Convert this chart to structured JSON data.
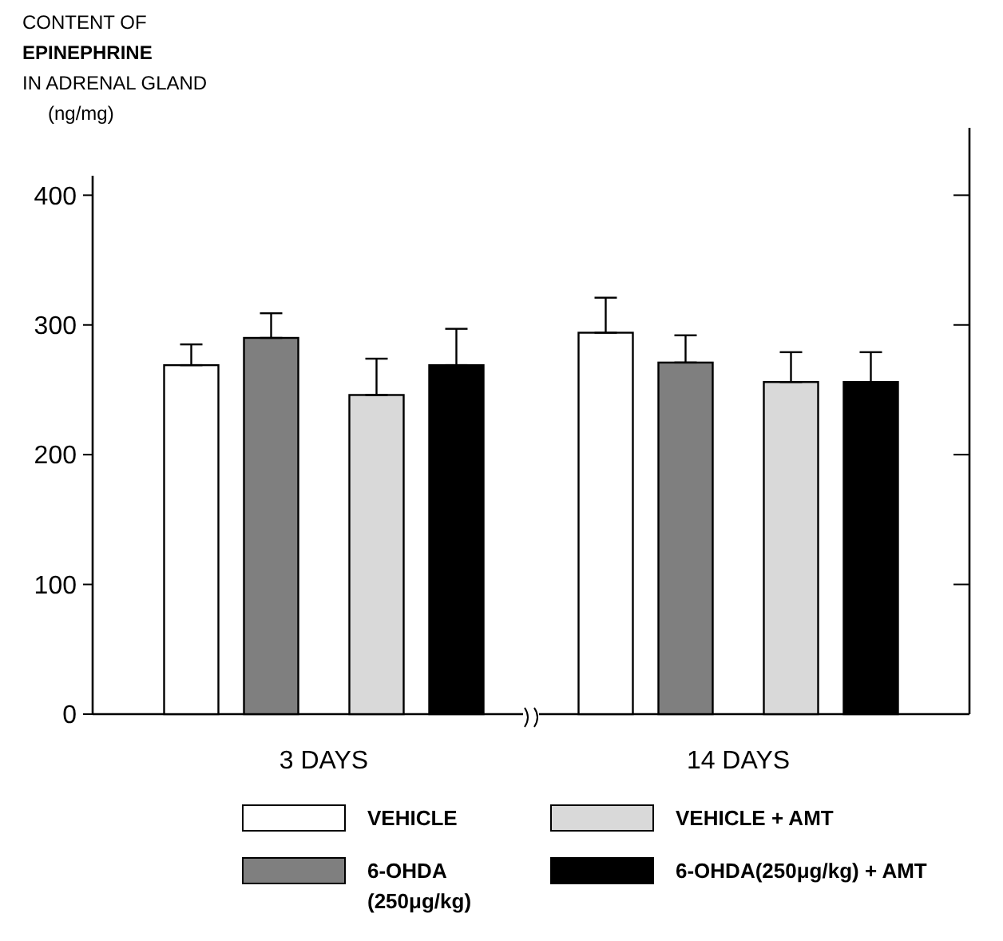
{
  "chart_data": {
    "type": "bar",
    "ylabel": "CONTENT OF\nEPINEPHRINE\nIN ADRENAL GLAND\n(ng/mg)",
    "categories": [
      "3 DAYS",
      "14 DAYS"
    ],
    "series": [
      {
        "name": "VEHICLE",
        "color": "#ffffff",
        "values": [
          269,
          294
        ],
        "errors": [
          [
            269,
            285
          ],
          [
            294,
            321
          ]
        ]
      },
      {
        "name": "6-OHDA (250μg/kg)",
        "color": "#7f7f7f",
        "values": [
          290,
          271
        ],
        "errors": [
          [
            290,
            309
          ],
          [
            271,
            292
          ]
        ]
      },
      {
        "name": "VEHICLE + AMT",
        "color": "#d9d9d9",
        "values": [
          246,
          256
        ],
        "errors": [
          [
            246,
            274
          ],
          [
            256,
            279
          ]
        ]
      },
      {
        "name": "6-OHDA(250μg/kg) + AMT",
        "color": "#000000",
        "values": [
          269,
          256
        ],
        "errors": [
          [
            269,
            297
          ],
          [
            256,
            279
          ]
        ]
      }
    ],
    "ylim": [
      0,
      415
    ],
    "yticks": [
      0,
      100,
      200,
      300,
      400
    ],
    "legend": "bottom",
    "grid": false
  }
}
